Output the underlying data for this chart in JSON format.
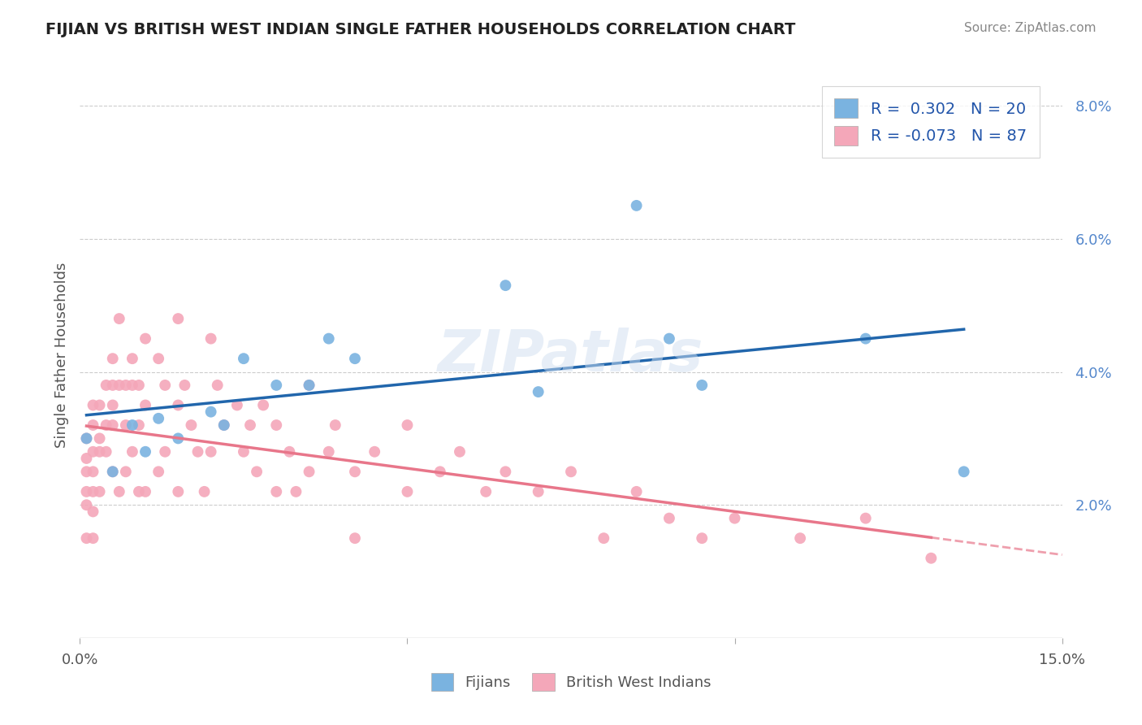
{
  "title": "FIJIAN VS BRITISH WEST INDIAN SINGLE FATHER HOUSEHOLDS CORRELATION CHART",
  "source": "Source: ZipAtlas.com",
  "xlabel_text": "",
  "ylabel_text": "Single Father Households",
  "xlim": [
    0.0,
    0.15
  ],
  "ylim": [
    0.0,
    0.085
  ],
  "xticks": [
    0.0,
    0.05,
    0.1,
    0.15
  ],
  "xtick_labels": [
    "0.0%",
    "",
    "",
    "15.0%"
  ],
  "ytick_labels_right": [
    "2.0%",
    "4.0%",
    "6.0%",
    "8.0%"
  ],
  "yticks_right": [
    0.02,
    0.04,
    0.06,
    0.08
  ],
  "fijian_color": "#7ab3e0",
  "bwi_color": "#f4a7b9",
  "fijian_line_color": "#2166ac",
  "bwi_line_color": "#e8768a",
  "background_color": "#ffffff",
  "watermark": "ZIPatlas",
  "legend_R_fijian": "R =  0.302",
  "legend_N_fijian": "N = 20",
  "legend_R_bwi": "R = -0.073",
  "legend_N_bwi": "N = 87",
  "fijian_x": [
    0.001,
    0.005,
    0.008,
    0.01,
    0.012,
    0.015,
    0.02,
    0.022,
    0.025,
    0.03,
    0.035,
    0.038,
    0.042,
    0.065,
    0.07,
    0.085,
    0.09,
    0.095,
    0.12,
    0.135
  ],
  "fijian_y": [
    0.03,
    0.025,
    0.032,
    0.028,
    0.033,
    0.03,
    0.034,
    0.032,
    0.042,
    0.038,
    0.038,
    0.045,
    0.042,
    0.053,
    0.037,
    0.065,
    0.045,
    0.038,
    0.045,
    0.025
  ],
  "bwi_x": [
    0.001,
    0.001,
    0.001,
    0.001,
    0.001,
    0.001,
    0.002,
    0.002,
    0.002,
    0.002,
    0.002,
    0.002,
    0.002,
    0.003,
    0.003,
    0.003,
    0.003,
    0.004,
    0.004,
    0.004,
    0.005,
    0.005,
    0.005,
    0.005,
    0.005,
    0.006,
    0.006,
    0.006,
    0.007,
    0.007,
    0.007,
    0.008,
    0.008,
    0.008,
    0.009,
    0.009,
    0.009,
    0.01,
    0.01,
    0.01,
    0.012,
    0.012,
    0.013,
    0.013,
    0.015,
    0.015,
    0.015,
    0.016,
    0.017,
    0.018,
    0.019,
    0.02,
    0.02,
    0.021,
    0.022,
    0.024,
    0.025,
    0.026,
    0.027,
    0.028,
    0.03,
    0.03,
    0.032,
    0.033,
    0.035,
    0.035,
    0.038,
    0.039,
    0.042,
    0.042,
    0.045,
    0.05,
    0.05,
    0.055,
    0.058,
    0.062,
    0.065,
    0.07,
    0.075,
    0.08,
    0.085,
    0.09,
    0.095,
    0.1,
    0.11,
    0.12,
    0.13
  ],
  "bwi_y": [
    0.03,
    0.025,
    0.027,
    0.022,
    0.02,
    0.015,
    0.035,
    0.032,
    0.028,
    0.025,
    0.022,
    0.019,
    0.015,
    0.035,
    0.03,
    0.028,
    0.022,
    0.038,
    0.032,
    0.028,
    0.042,
    0.038,
    0.035,
    0.032,
    0.025,
    0.048,
    0.038,
    0.022,
    0.038,
    0.032,
    0.025,
    0.042,
    0.038,
    0.028,
    0.038,
    0.032,
    0.022,
    0.045,
    0.035,
    0.022,
    0.042,
    0.025,
    0.038,
    0.028,
    0.048,
    0.035,
    0.022,
    0.038,
    0.032,
    0.028,
    0.022,
    0.045,
    0.028,
    0.038,
    0.032,
    0.035,
    0.028,
    0.032,
    0.025,
    0.035,
    0.032,
    0.022,
    0.028,
    0.022,
    0.038,
    0.025,
    0.028,
    0.032,
    0.025,
    0.015,
    0.028,
    0.032,
    0.022,
    0.025,
    0.028,
    0.022,
    0.025,
    0.022,
    0.025,
    0.015,
    0.022,
    0.018,
    0.015,
    0.018,
    0.015,
    0.018,
    0.012
  ]
}
